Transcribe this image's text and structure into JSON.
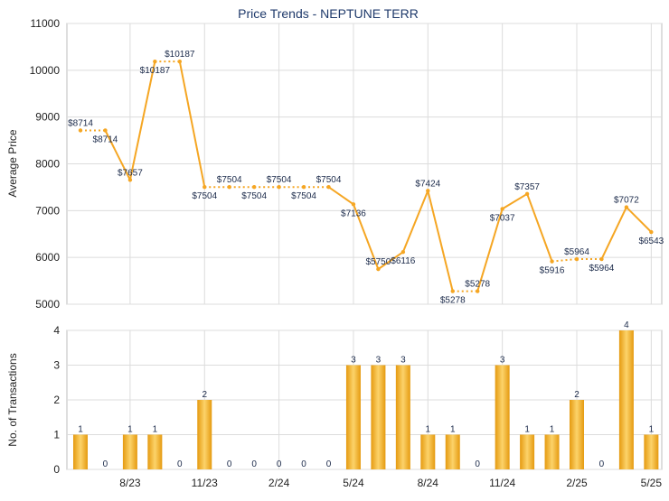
{
  "chart_data": [
    {
      "type": "line",
      "title": "Price Trends - NEPTUNE TERR",
      "ylabel": "Average Price",
      "ylim": [
        5000,
        11000
      ],
      "yticks": [
        5000,
        6000,
        7000,
        8000,
        9000,
        10000,
        11000
      ],
      "grid": true,
      "line_color": "#f5a623",
      "series": [
        {
          "values": [
            8714,
            8714,
            7657,
            10187,
            10187,
            7504,
            7504,
            7504,
            7504,
            7504,
            7504,
            7136,
            5750,
            6116,
            7424,
            5278,
            5278,
            7037,
            7357,
            5916,
            5964,
            5964,
            7072,
            6543
          ],
          "labels": [
            "$8714",
            "$8714",
            "$7657",
            "$10187",
            "$10187",
            "$7504",
            "$7504",
            "$7504",
            "$7504",
            "$7504",
            "$7504",
            "$7136",
            "$5750",
            "$6116",
            "$7424",
            "$5278",
            "$5278",
            "$7037",
            "$7357",
            "$5916",
            "$5964",
            "$5964",
            "$7072",
            "$6543"
          ],
          "dotted_after": [
            0,
            3,
            5,
            6,
            7,
            8,
            9,
            15,
            19,
            20
          ]
        }
      ]
    },
    {
      "type": "bar",
      "ylabel": "No. of Transactions",
      "ylim": [
        0,
        4
      ],
      "yticks": [
        0,
        1,
        2,
        3,
        4
      ],
      "grid": true,
      "bar_color": "#f5a623",
      "values": [
        1,
        0,
        1,
        1,
        0,
        2,
        0,
        0,
        0,
        0,
        0,
        3,
        3,
        3,
        1,
        1,
        0,
        3,
        1,
        1,
        2,
        0,
        4,
        1
      ],
      "xtick_labels": [
        "8/23",
        "11/23",
        "2/24",
        "5/24",
        "8/24",
        "11/24",
        "2/25",
        "5/25"
      ],
      "xtick_positions": [
        2,
        5,
        8,
        11,
        14,
        17,
        20,
        23
      ]
    }
  ]
}
